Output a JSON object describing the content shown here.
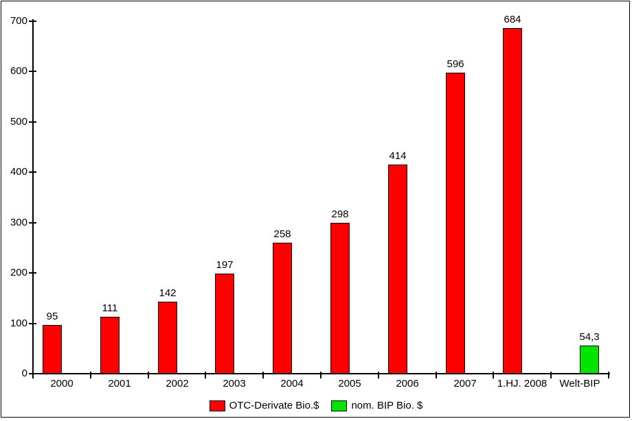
{
  "frame": {
    "background": "#FFFFFF",
    "border_color": "#000000"
  },
  "chart_data": {
    "type": "bar",
    "title": "",
    "xlabel": "",
    "ylabel": "",
    "categories": [
      "2000",
      "2001",
      "2002",
      "2003",
      "2004",
      "2005",
      "2006",
      "2007",
      "1.HJ. 2008",
      "Welt-BIP"
    ],
    "series": [
      {
        "name": "OTC-Derivate Bio.$",
        "color": "#FF0000",
        "values": [
          95,
          111,
          142,
          197,
          258,
          298,
          414,
          596,
          684,
          null
        ]
      },
      {
        "name": "nom. BIP Bio. $",
        "color": "#00E400",
        "values": [
          null,
          null,
          null,
          null,
          null,
          null,
          null,
          null,
          null,
          54.3
        ]
      }
    ],
    "value_labels": [
      "95",
      "111",
      "142",
      "197",
      "258",
      "298",
      "414",
      "596",
      "684",
      "54,3"
    ],
    "y_ticks": [
      0,
      100,
      200,
      300,
      400,
      500,
      600,
      700
    ],
    "ylim": [
      0,
      700
    ],
    "grid": false,
    "legend_position": "bottom",
    "bar_border_color": "#000000",
    "axis_color": "#000000"
  }
}
